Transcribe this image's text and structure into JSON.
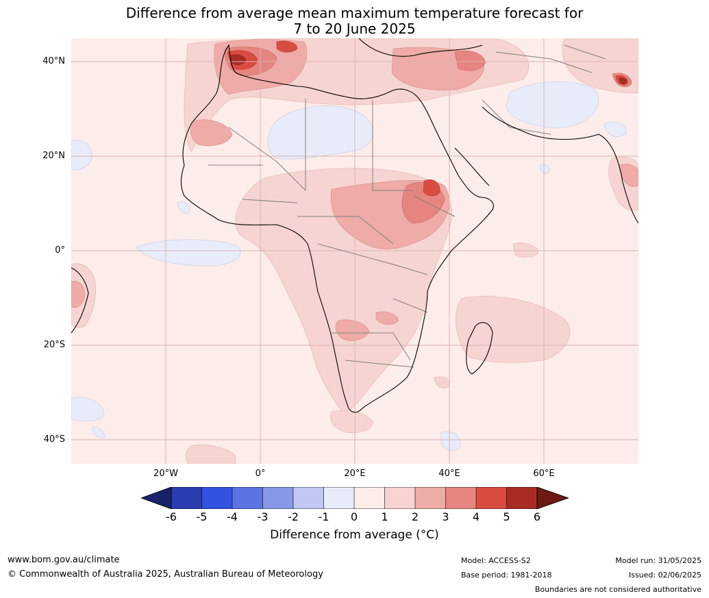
{
  "title": {
    "line1": "Difference from average mean maximum temperature forecast for",
    "line2": "7 to 20 June 2025"
  },
  "map": {
    "lat_labels": [
      "40°N",
      "20°N",
      "0°",
      "20°S",
      "40°S"
    ],
    "lon_labels": [
      "20°W",
      "0°",
      "20°E",
      "40°E",
      "60°E"
    ],
    "colors": {
      "ocean_base": "#fcecea",
      "light_blue": "#e8ecfa",
      "anom_1_2": "#f6d4d1",
      "anom_2_3": "#eeaba7",
      "anom_3_4": "#e6857f",
      "anom_4_5": "#d84c42",
      "anom_5_6": "#a92c24",
      "grid": "#d8b4b4",
      "coast": "#000000",
      "border": "#808080"
    }
  },
  "colorbar": {
    "ticks": [
      "-6",
      "-5",
      "-4",
      "-3",
      "-2",
      "-1",
      "0",
      "1",
      "2",
      "3",
      "4",
      "5",
      "6"
    ],
    "colors": [
      "#17226b",
      "#2a3db0",
      "#3253e0",
      "#5c74e2",
      "#8798e6",
      "#bfc7f2",
      "#e8ecfa",
      "#fcecea",
      "#f6d4d1",
      "#eeaba7",
      "#e6857f",
      "#d84c42",
      "#a92c24",
      "#6b1a14"
    ],
    "label": "Difference from average (°C)"
  },
  "footer": {
    "website": "www.bom.gov.au/climate",
    "copyright": "© Commonwealth of Australia 2025, Australian Bureau of Meteorology",
    "model": "Model: ACCESS-S2",
    "base_period": "Base period: 1981-2018",
    "model_run": "Model run: 31/05/2025",
    "issued": "Issued: 02/06/2025",
    "disclaimer": "Boundaries are not considered authoritative"
  }
}
